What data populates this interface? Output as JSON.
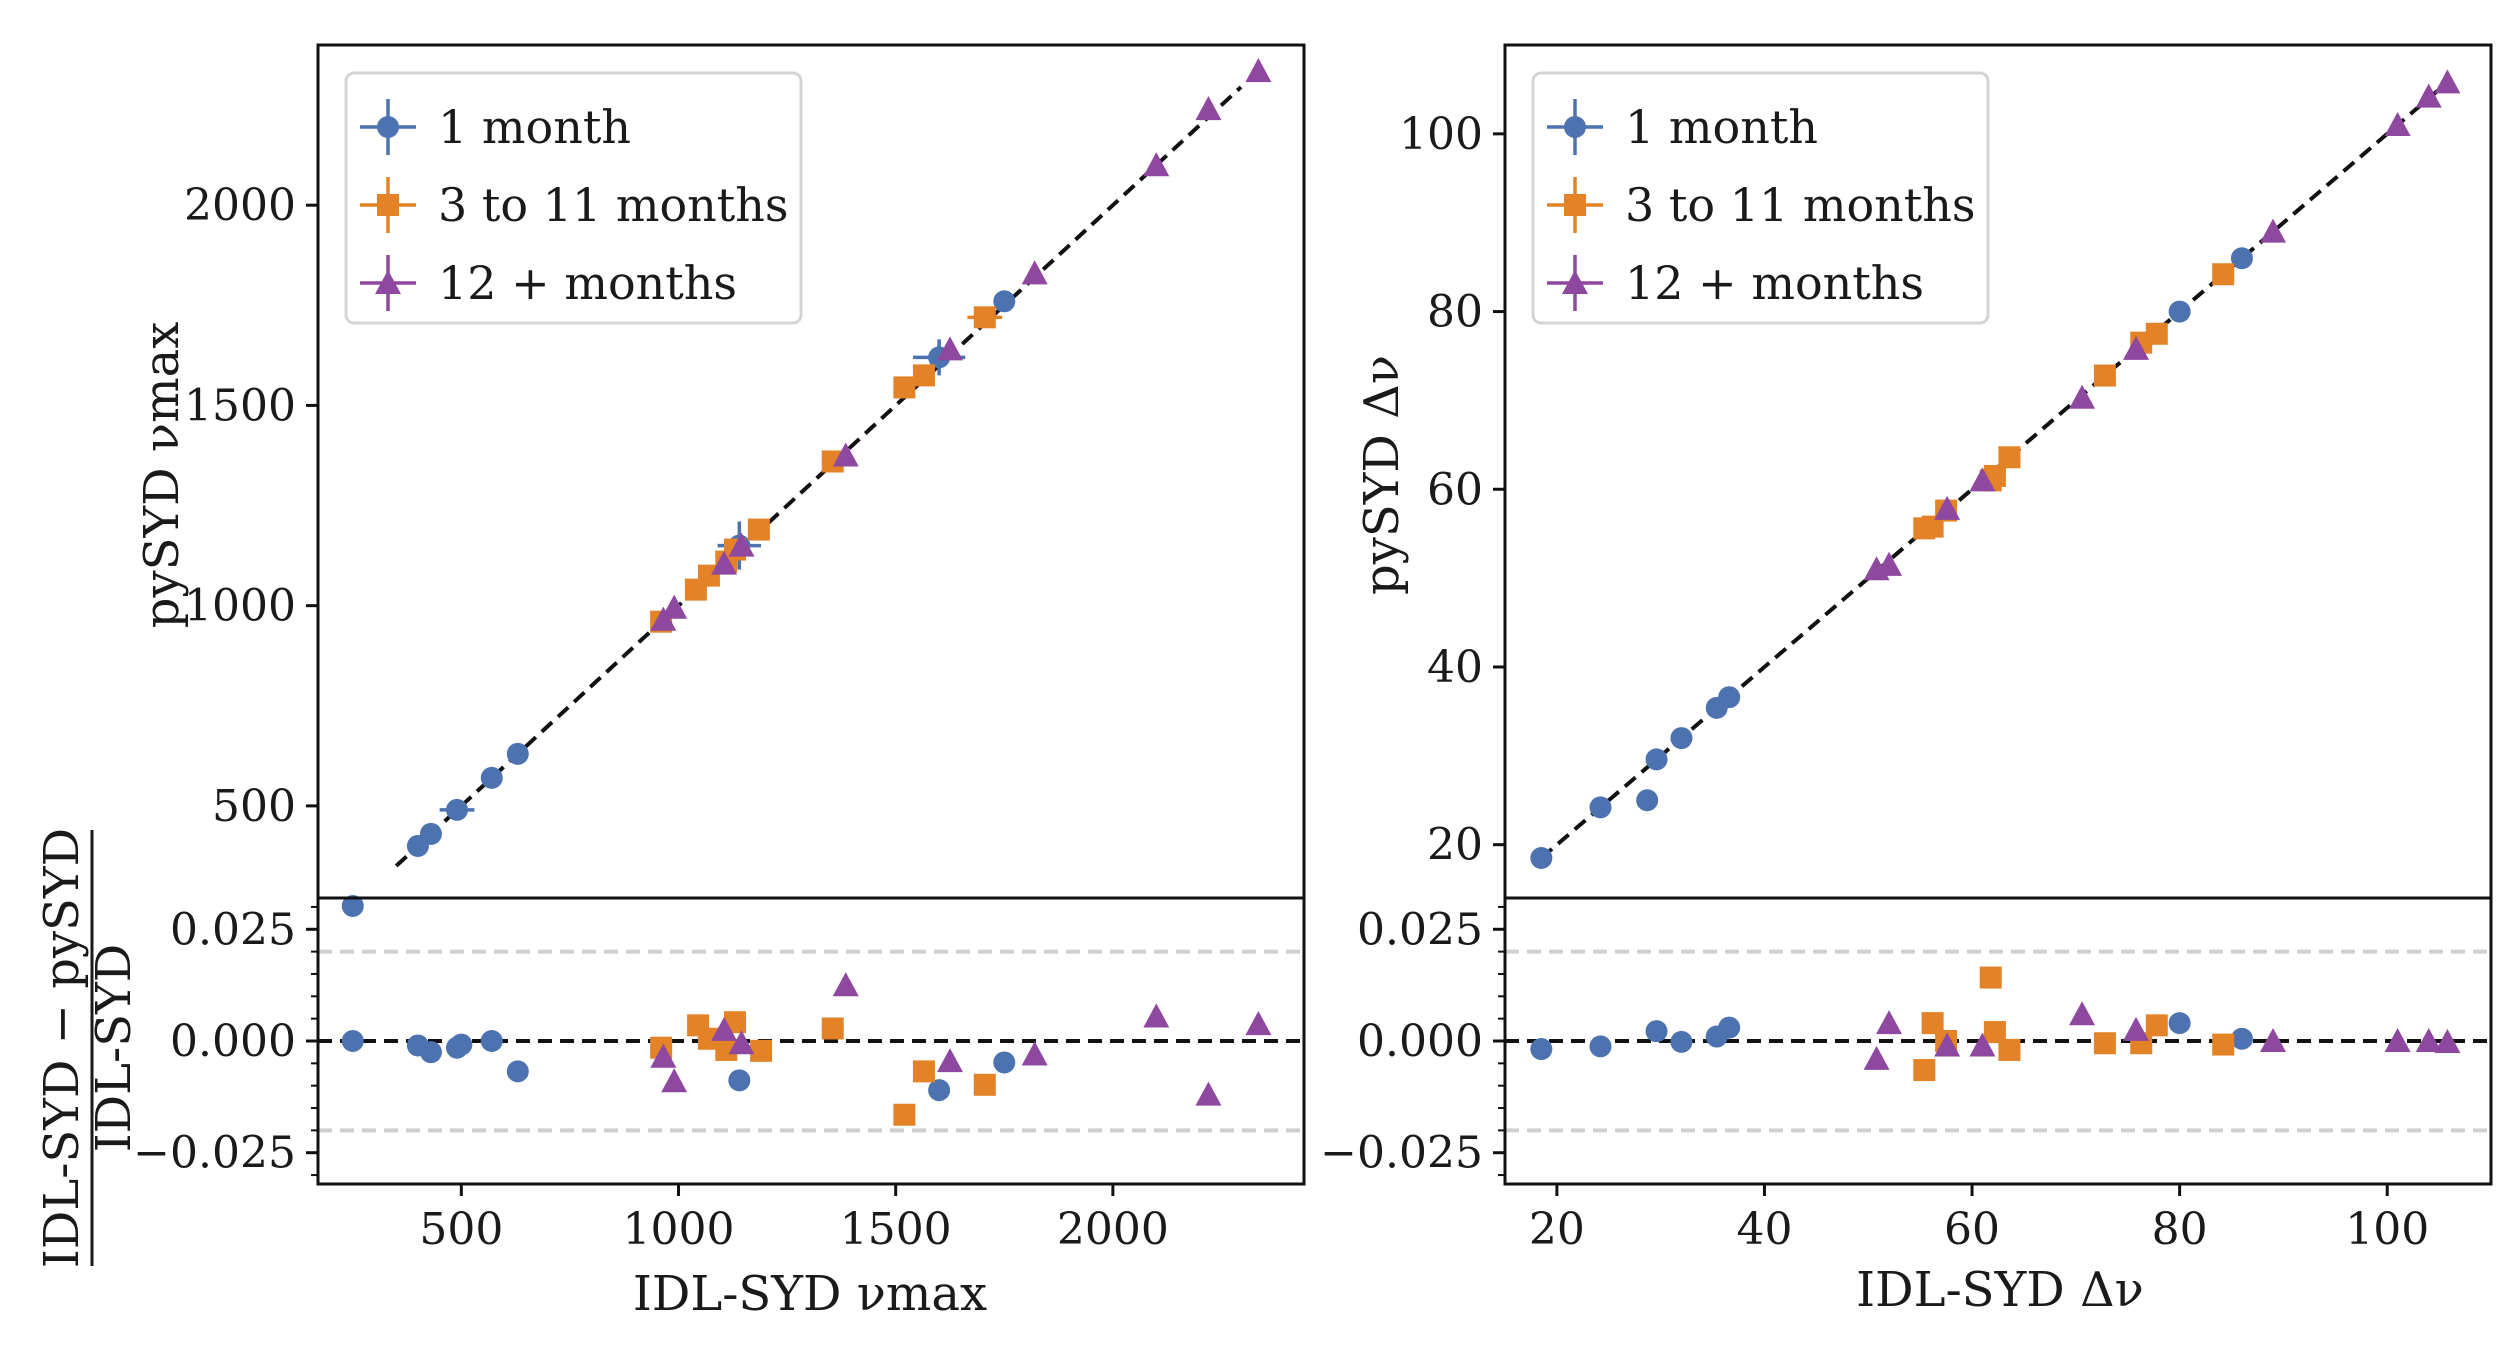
{
  "chart_data": [
    {
      "type": "scatter",
      "panel": "numax-main",
      "xlabel": "IDL-SYD νmax",
      "ylabel": "pySYD νmax",
      "xlim": [
        170,
        2440
      ],
      "ylim": [
        270,
        2400
      ],
      "xticks": [
        500,
        1000,
        1500,
        2000
      ],
      "yticks": [
        500,
        1000,
        1500,
        2000
      ],
      "reference_line": "y = x (dashed black)",
      "legend": {
        "placement": "top-left",
        "entries": [
          "1 month",
          "3 to 11 months",
          "12 + months"
        ]
      },
      "series": [
        {
          "name": "1 month",
          "color": "#4c72b0",
          "marker": "circle",
          "x": [
            250,
            400,
            430,
            490,
            570,
            630,
            1140,
            1600,
            1750
          ],
          "y": [
            250,
            400,
            430,
            490,
            570,
            630,
            1150,
            1620,
            1760
          ],
          "xerr": [
            0,
            0,
            0,
            40,
            0,
            0,
            50,
            60,
            0
          ],
          "yerr": [
            0,
            0,
            0,
            25,
            0,
            0,
            60,
            45,
            0
          ]
        },
        {
          "name": "3 to 11 months",
          "color": "#e48227",
          "marker": "square",
          "x": [
            960,
            1040,
            1070,
            1110,
            1130,
            1185,
            1355,
            1520,
            1565,
            1705
          ],
          "y": [
            960,
            1040,
            1075,
            1110,
            1140,
            1190,
            1360,
            1545,
            1575,
            1720
          ],
          "xerr": [
            0,
            0,
            0,
            0,
            0,
            0,
            0,
            0,
            0,
            40
          ],
          "yerr": [
            0,
            0,
            0,
            0,
            0,
            0,
            0,
            0,
            0,
            25
          ]
        },
        {
          "name": "12 + months",
          "color": "#8e48a0",
          "marker": "triangle",
          "x": [
            965,
            990,
            1105,
            1145,
            1385,
            1625,
            1820,
            2100,
            2220,
            2335
          ],
          "y": [
            965,
            995,
            1105,
            1150,
            1375,
            1640,
            1830,
            2100,
            2240,
            2335
          ],
          "xerr": [
            0,
            0,
            0,
            0,
            0,
            0,
            0,
            0,
            0,
            0
          ],
          "yerr": [
            0,
            0,
            0,
            0,
            0,
            0,
            0,
            0,
            0,
            0
          ]
        }
      ]
    },
    {
      "type": "scatter",
      "panel": "numax-residual",
      "xlabel": "IDL-SYD νmax",
      "ylabel": "IDL-SYD − pySYD / IDL-SYD",
      "ylabel_numerator": "IDL-SYD − pySYD",
      "ylabel_denominator": "IDL-SYD",
      "xlim": [
        170,
        2440
      ],
      "ylim": [
        -0.032,
        0.032
      ],
      "yticks": [
        -0.025,
        0.0,
        0.025
      ],
      "ytick_labels": [
        "−0.025",
        "0.000",
        "0.025"
      ],
      "reference_lines": {
        "zero": 0.0,
        "bounds": [
          -0.02,
          0.02
        ]
      },
      "series": [
        {
          "name": "1 month",
          "color": "#4c72b0",
          "marker": "circle",
          "x": [
            250,
            400,
            430,
            490,
            500,
            570,
            630,
            1140,
            1600,
            1750
          ],
          "y": [
            0.0,
            -0.001,
            -0.0025,
            -0.0015,
            -0.0008,
            0.0,
            -0.0068,
            -0.0088,
            -0.011,
            -0.0048
          ]
        },
        {
          "name": "3 to 11 months",
          "color": "#e48227",
          "marker": "square",
          "x": [
            960,
            1045,
            1070,
            1110,
            1130,
            1190,
            1355,
            1520,
            1565,
            1705
          ],
          "y": [
            -0.0015,
            0.0035,
            0.0005,
            -0.002,
            0.0042,
            -0.0022,
            0.0028,
            -0.0165,
            -0.0068,
            -0.0098
          ]
        },
        {
          "name": "12 + months",
          "color": "#8e48a0",
          "marker": "triangle",
          "x": [
            965,
            990,
            1105,
            1145,
            1385,
            1625,
            1820,
            2100,
            2220,
            2335
          ],
          "y": [
            -0.0035,
            -0.009,
            0.0025,
            -0.0005,
            0.0125,
            -0.0045,
            -0.003,
            0.0055,
            -0.012,
            0.0038
          ]
        }
      ]
    },
    {
      "type": "scatter",
      "panel": "dnu-main",
      "xlabel": "IDL-SYD Δν",
      "ylabel": "pySYD Δν",
      "xlim": [
        15,
        110
      ],
      "ylim": [
        14,
        110
      ],
      "xticks": [
        20,
        40,
        60,
        80,
        100
      ],
      "yticks": [
        20,
        40,
        60,
        80,
        100
      ],
      "reference_line": "y = x (dashed black)",
      "legend": {
        "placement": "top-left",
        "entries": [
          "1 month",
          "3 to 11 months",
          "12 + months"
        ]
      },
      "series": [
        {
          "name": "1 month",
          "color": "#4c72b0",
          "marker": "circle",
          "x": [
            18.5,
            24.2,
            28.7,
            29.6,
            32.0,
            35.4,
            36.6,
            80.0,
            86.0
          ],
          "y": [
            18.5,
            24.2,
            25.0,
            29.6,
            32.0,
            35.4,
            36.6,
            80.0,
            86.0
          ]
        },
        {
          "name": "3 to 11 months",
          "color": "#e48227",
          "marker": "square",
          "x": [
            55.4,
            56.2,
            57.5,
            61.8,
            62.2,
            63.6,
            72.8,
            76.3,
            77.8,
            84.2
          ],
          "y": [
            55.6,
            55.8,
            57.6,
            61.0,
            61.5,
            63.6,
            72.8,
            76.5,
            77.5,
            84.2
          ]
        },
        {
          "name": "12 + months",
          "color": "#8e48a0",
          "marker": "triangle",
          "x": [
            50.8,
            52.0,
            57.6,
            61.0,
            70.6,
            75.8,
            89.0,
            101.0,
            104.0,
            105.8
          ],
          "y": [
            51.0,
            51.5,
            57.8,
            61.0,
            70.3,
            75.8,
            89.0,
            101.0,
            104.2,
            105.8
          ]
        }
      ]
    },
    {
      "type": "scatter",
      "panel": "dnu-residual",
      "xlabel": "IDL-SYD Δν",
      "ylabel": "",
      "xlim": [
        15,
        110
      ],
      "ylim": [
        -0.032,
        0.032
      ],
      "yticks": [
        -0.025,
        0.0,
        0.025
      ],
      "ytick_labels": [
        "−0.025",
        "0.000",
        "0.025"
      ],
      "reference_lines": {
        "zero": 0.0,
        "bounds": [
          -0.02,
          0.02
        ]
      },
      "series": [
        {
          "name": "1 month",
          "color": "#4c72b0",
          "marker": "circle",
          "x": [
            18.5,
            24.2,
            29.6,
            32.0,
            35.4,
            36.6,
            80.0,
            86.0
          ],
          "y": [
            -0.0018,
            -0.0012,
            0.0022,
            -0.0002,
            0.001,
            0.003,
            0.004,
            0.0005
          ]
        },
        {
          "name": "3 to 11 months",
          "color": "#e48227",
          "marker": "square",
          "x": [
            55.4,
            56.2,
            57.5,
            61.8,
            62.2,
            63.6,
            72.8,
            76.3,
            77.8,
            84.2
          ],
          "y": [
            -0.0065,
            0.004,
            0.0,
            0.0142,
            0.002,
            -0.002,
            -0.0005,
            -0.0005,
            0.0035,
            -0.0008
          ]
        },
        {
          "name": "12 + months",
          "color": "#8e48a0",
          "marker": "triangle",
          "x": [
            50.8,
            52.0,
            57.6,
            61.0,
            70.6,
            75.8,
            89.0,
            101.0,
            104.0,
            105.8
          ],
          "y": [
            -0.004,
            0.004,
            -0.001,
            -0.001,
            0.006,
            0.0025,
            0.0,
            0.0,
            0.0,
            -0.0002
          ]
        }
      ]
    }
  ]
}
